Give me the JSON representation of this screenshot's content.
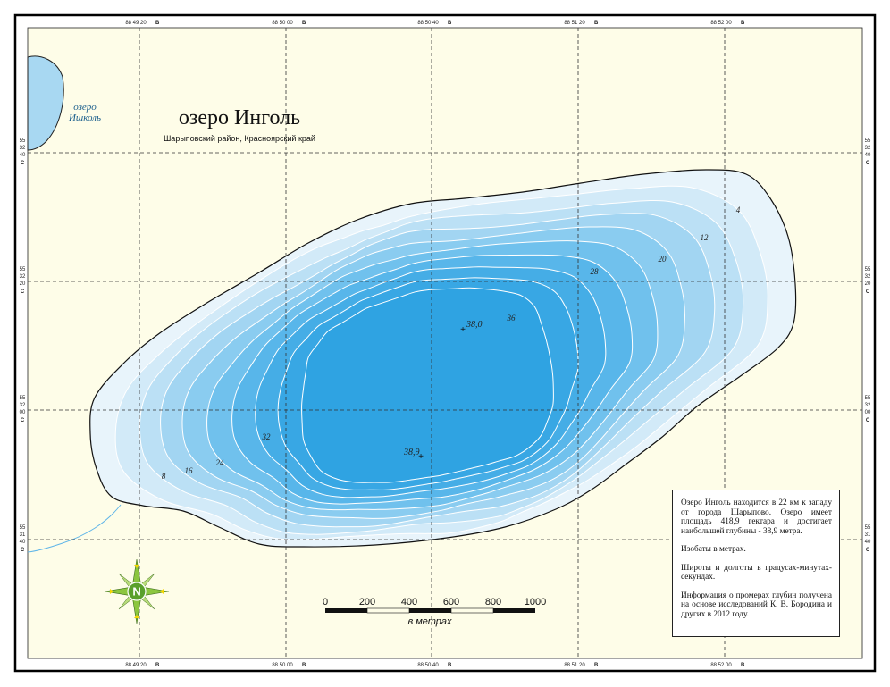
{
  "title": "озеро Инголь",
  "subtitle": "Шарыповский район, Красноярский край",
  "neighbor_lake": {
    "name_line1": "озеро",
    "name_line2": "Ишколь"
  },
  "top_longitudes": [
    {
      "text": "88 49 20",
      "suffix": "В"
    },
    {
      "text": "88 50 00",
      "suffix": "В"
    },
    {
      "text": "88 50 40",
      "suffix": "В"
    },
    {
      "text": "88 51 20",
      "suffix": "В"
    },
    {
      "text": "88 52 00",
      "suffix": "В"
    }
  ],
  "side_latitudes": [
    {
      "deg": "55",
      "min": "32",
      "sec": "40",
      "suffix": "С"
    },
    {
      "deg": "55",
      "min": "32",
      "sec": "20",
      "suffix": "С"
    },
    {
      "deg": "55",
      "min": "32",
      "sec": "00",
      "suffix": "С"
    },
    {
      "deg": "55",
      "min": "31",
      "sec": "40",
      "suffix": "С"
    }
  ],
  "isobath_labels": [
    "4",
    "8",
    "12",
    "16",
    "20",
    "24",
    "28",
    "32",
    "36"
  ],
  "depth_points": [
    "38,0",
    "38,9"
  ],
  "scale": {
    "ticks": [
      "0",
      "200",
      "400",
      "600",
      "800",
      "1000"
    ],
    "unit": "в метрах"
  },
  "compass": {
    "letter": "N"
  },
  "info": [
    "Озеро Инголь находится в 22 км к западу от города Шарыпово. Озеро имеет площадь 418,9 гектара и достигает наибольшей глубины - 38,9 метра.",
    "Изобаты в метрах.",
    "Широты и долготы в градусах-минутах-секундах.",
    "Информация о промерах глубин получена на основе исследований К. В. Бородина и других в 2012 году."
  ],
  "colors": {
    "land": "#fefde8",
    "shore": "#e8f4fb",
    "deep": "#2fa3e2",
    "neighbor_lake": "#a8d8f2",
    "frame": "#000000"
  }
}
